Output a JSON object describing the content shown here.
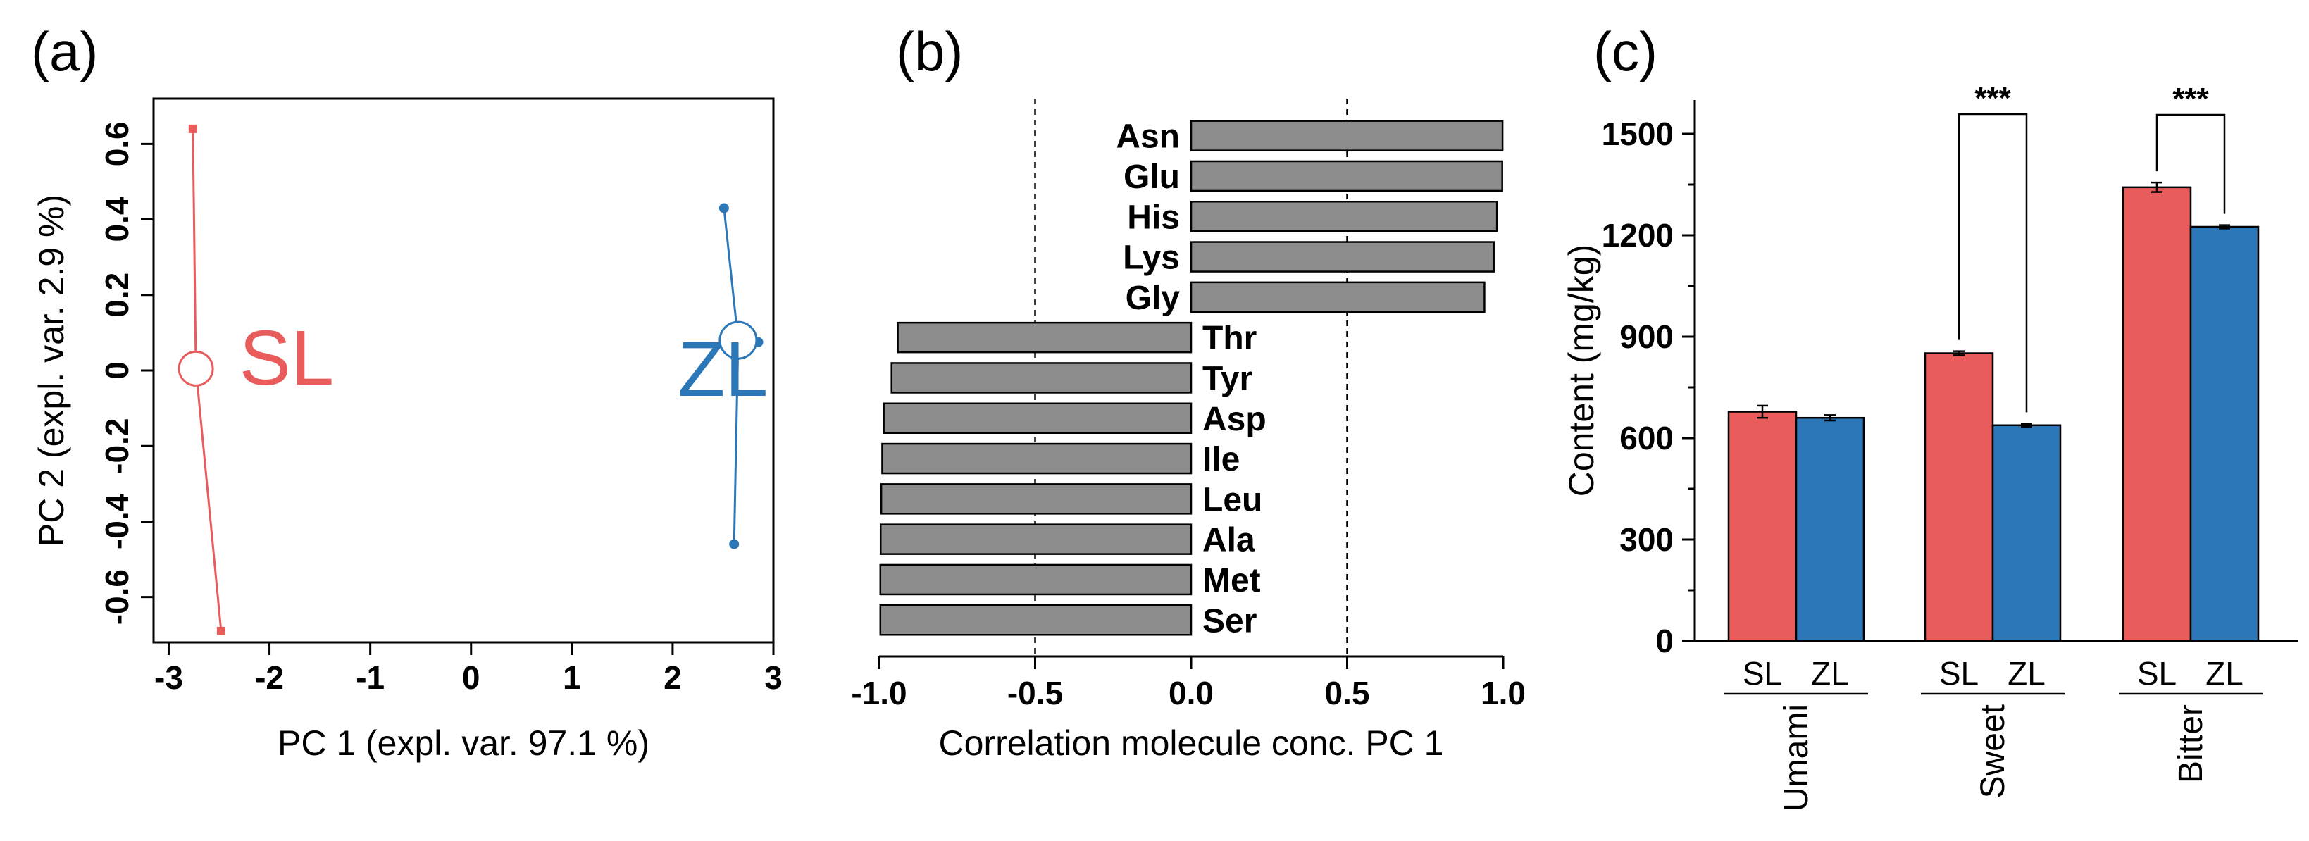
{
  "colors": {
    "sl": "#e85c5c",
    "zl": "#2c77b8",
    "bar_gray": "#8c8c8c",
    "axis": "#000000"
  },
  "chart_data": [
    {
      "type": "scatter",
      "panel_label": "(a)",
      "xlabel": "PC 1 (expl. var. 97.1 %)",
      "ylabel": "PC 2 (expl. var. 2.9 %)",
      "xlim": [
        -3.15,
        3.0
      ],
      "ylim": [
        -0.72,
        0.72
      ],
      "xticks": [
        -3,
        -2,
        -1,
        0,
        1,
        2,
        3
      ],
      "yticks": [
        -0.6,
        -0.4,
        -0.2,
        0,
        0.2,
        0.4,
        0.6
      ],
      "xtick_labels": [
        "-3",
        "-2",
        "-1",
        "0",
        "1",
        "2",
        "3"
      ],
      "ytick_labels": [
        "-0.6",
        "-0.4",
        "-0.2",
        "0",
        "0.2",
        "0.4",
        "0.6"
      ],
      "series": [
        {
          "name": "SL",
          "points": [
            [
              -2.76,
              0.64
            ],
            [
              -2.73,
              0.0
            ],
            [
              -2.48,
              -0.69
            ]
          ],
          "centroid": [
            -2.73,
            0.005
          ],
          "label_pos": [
            -2.3,
            0.03
          ]
        },
        {
          "name": "ZL",
          "points": [
            [
              2.51,
              0.43
            ],
            [
              2.85,
              0.075
            ],
            [
              2.61,
              -0.46
            ]
          ],
          "centroid": [
            2.65,
            0.08
          ],
          "label_pos": [
            2.05,
            0.0
          ]
        }
      ]
    },
    {
      "type": "bar",
      "orientation": "horizontal",
      "panel_label": "(b)",
      "xlabel": "Correlation molecule conc. PC 1",
      "xlim": [
        -1.0,
        1.0
      ],
      "xticks": [
        -1.0,
        -0.5,
        0.0,
        0.5,
        1.0
      ],
      "xtick_labels": [
        "-1.0",
        "-0.5",
        "0.0",
        "0.5",
        "1.0"
      ],
      "reference_lines": [
        -0.5,
        0.5
      ],
      "categories": [
        "Asn",
        "Glu",
        "His",
        "Lys",
        "Gly",
        "Thr",
        "Tyr",
        "Asp",
        "Ile",
        "Leu",
        "Ala",
        "Met",
        "Ser"
      ],
      "values": [
        0.998,
        0.997,
        0.98,
        0.97,
        0.94,
        -0.94,
        -0.96,
        -0.985,
        -0.99,
        -0.993,
        -0.995,
        -0.996,
        -0.996
      ]
    },
    {
      "type": "bar",
      "panel_label": "(c)",
      "ylabel": "Content (mg/kg)",
      "ylim": [
        0,
        1600
      ],
      "yticks": [
        0,
        300,
        600,
        900,
        1200,
        1500
      ],
      "ytick_labels": [
        "0",
        "300",
        "600",
        "900",
        "1200",
        "1500"
      ],
      "groups": [
        "Umami",
        "Sweet",
        "Bitter"
      ],
      "series": [
        {
          "name": "SL",
          "values": [
            678,
            851,
            1342
          ],
          "errors": [
            18,
            6,
            14
          ]
        },
        {
          "name": "ZL",
          "values": [
            660,
            638,
            1225
          ],
          "errors": [
            8,
            5,
            5
          ]
        }
      ],
      "significance": [
        {
          "group": "Sweet",
          "label": "***"
        },
        {
          "group": "Bitter",
          "label": "***"
        }
      ]
    }
  ]
}
